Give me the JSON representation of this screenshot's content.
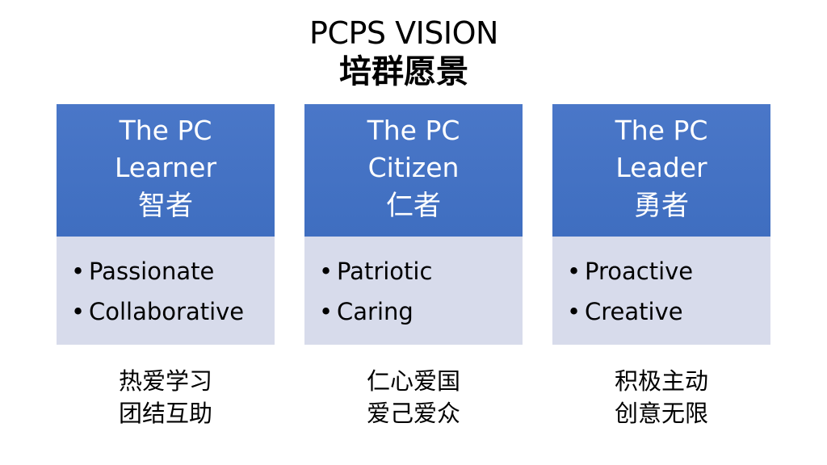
{
  "title": {
    "en": "PCPS VISION",
    "zh": "培群愿景"
  },
  "columns": [
    {
      "heading": [
        "The PC",
        "Learner"
      ],
      "heading_zh": "智者",
      "bullets": [
        "Passionate",
        "Collaborative"
      ],
      "caption": [
        "热爱学习",
        "团结互助"
      ]
    },
    {
      "heading": [
        "The PC",
        "Citizen"
      ],
      "heading_zh": "仁者",
      "bullets": [
        "Patriotic",
        "Caring"
      ],
      "caption": [
        "仁心爱国",
        "爱己爱众"
      ]
    },
    {
      "heading": [
        "The PC",
        "Leader"
      ],
      "heading_zh": "勇者",
      "bullets": [
        "Proactive",
        "Creative"
      ],
      "caption": [
        "积极主动",
        "创意无限"
      ]
    }
  ],
  "bullet_symbol": "•",
  "colors": {
    "header": "#4472c4",
    "body": "#d7dbeb"
  }
}
